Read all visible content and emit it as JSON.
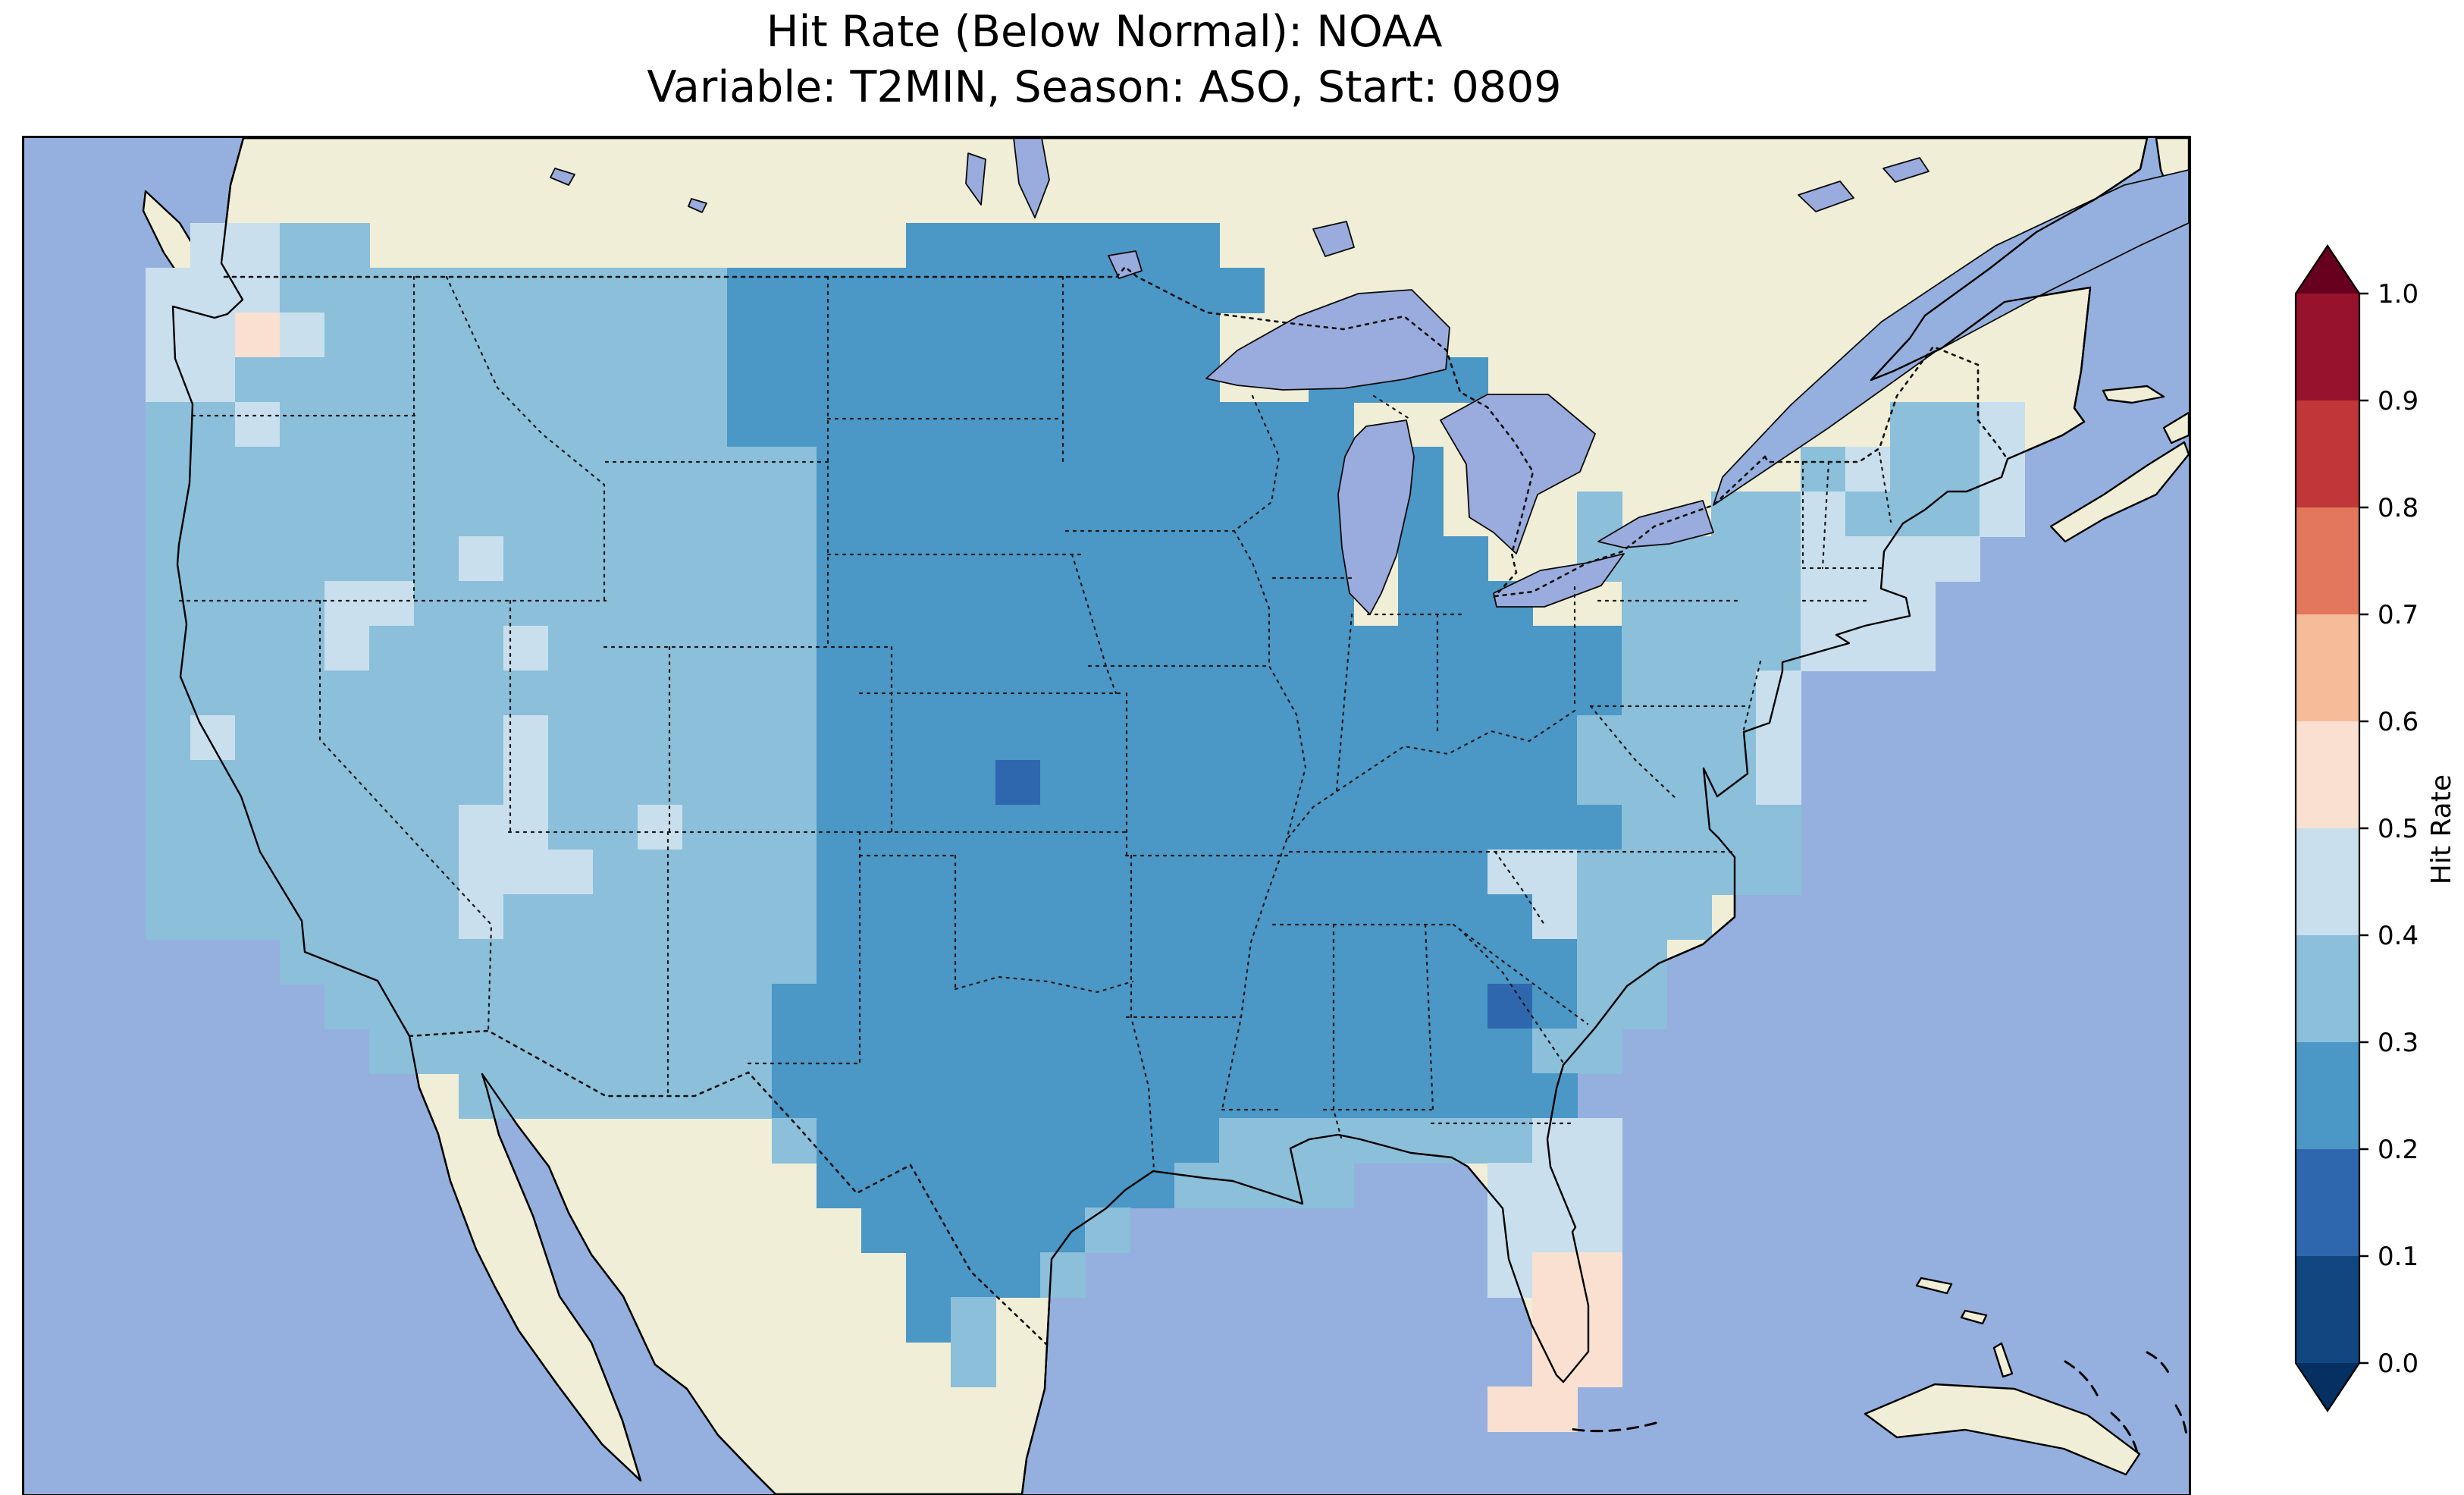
{
  "figure": {
    "title_line1": "Hit Rate (Below Normal): NOAA",
    "title_line2": "Variable: T2MIN, Season: ASO, Start: 0809"
  },
  "map": {
    "ocean_color": "#95b0de",
    "land_color": "#f0eed6",
    "lake_color": "#9aabdd",
    "region": "Contiguous United States with surrounding Canada, Mexico, Gulf of Mexico and Atlantic"
  },
  "colorbar": {
    "label": "Hit Rate",
    "ticks": [
      "1.0",
      "0.9",
      "0.8",
      "0.7",
      "0.6",
      "0.5",
      "0.4",
      "0.3",
      "0.2",
      "0.1",
      "0.0"
    ],
    "bin_colors": [
      "#114781",
      "#2e67ae",
      "#4b97c6",
      "#8bbfda",
      "#c9dfed",
      "#f9e0d0",
      "#f6bc99",
      "#e2775c",
      "#c13639",
      "#97122c"
    ],
    "under_color": "#053061",
    "over_color": "#67001f"
  },
  "chart_data": {
    "type": "heatmap",
    "title": "Hit Rate (Below Normal): NOAA",
    "subtitle": "Variable: T2MIN, Season: ASO, Start: 0809",
    "metric": "Hit Rate (Below Normal)",
    "source": "NOAA",
    "variable": "T2MIN",
    "season": "ASO",
    "start": "0809",
    "value_range": [
      0.0,
      1.0
    ],
    "colormap": {
      "name": "RdBu_r, 10 discrete bins, extend both",
      "bin_edges": [
        0.0,
        0.1,
        0.2,
        0.3,
        0.4,
        0.5,
        0.6,
        0.7,
        0.8,
        0.9,
        1.0
      ]
    },
    "legend_bin_ranges": [
      "0.0-0.1",
      "0.1-0.2",
      "0.2-0.3",
      "0.3-0.4",
      "0.4-0.5",
      "0.5-0.6",
      "0.6-0.7",
      "0.7-0.8",
      "0.8-0.9",
      "0.9-1.0"
    ],
    "summary": "Hit rates over most of the central and eastern CONUS are 0.2-0.3 (medium blue); the interior West and coasts are 0.3-0.5 (lighter blues); isolated 0.1-0.2 cells appear in central Kansas and central Georgia; South Florida and the Keys reach 0.5-0.6 (pale pink).",
    "grid": {
      "note": "Character-coded hit-rate bins on an approximate CONUS grid, '.'=no data (masked/non-US). Values estimated from the pixels.",
      "cell_bins": {
        "a": 0,
        "b": 1,
        "c": 2,
        "d": 3,
        "e": 4,
        "f": 5,
        "g": 6
      },
      "n_cols": 42,
      "n_rows": 27,
      "approx_bounds_note": "estimated extent of gridded data",
      "approx_lon_bounds": [
        -125.5,
        -66.7
      ],
      "approx_lat_bounds": [
        24.0,
        50.2
      ],
      "rows": [
        ".eedd............ccccccc..................",
        "eeeddddddddddcccccccccccc.................",
        "eefedddddddddccccccccccc..................",
        "eedddddddddddccccccccccc..cccc............",
        "ddeddddddddddcccccccccccccc............dde",
        "dddddddddddddddcccccccccccc.c........dedde",
        "dddddddddddddddcccccccccccc.c...d..ddeddde",
        "dddddddedddddddcccccccccccc.cc..dddddeeee.",
        "ddddeedddddddddcccccccccccc.ccc..ddddeee..",
        "ddddedddeddddddccccccccccccccccccddddeee..",
        "dddddddddddddddccccccccccccccccccddde.....",
        "deddddddeddddddcccccccccccccccccdddde.....",
        "ddddddddeddddddccccbccccccccccccdddde.....",
        "dddddddeeddedddccccccccccccccccccdddd.....",
        "dddddddeeedddddccccccccccccccceeddddd.....",
        "dddddddedddddddccccccccccccccccedddе......",
        "...ddddddddddddcccccccccccccccccdd........",
        "....ddddddddddccccccccccccccccbcdd........",
        ".....dddddddddcccccccccccccccccdd.........",
        ".......dddddddcccccccccccccccccc..........",
        "..............dcccccccccdddddddee.........",
        "...............ccccccccdddd...eee.........",
        "................cccccd........eee.........",
        ".................cccd.........eff.........",
        ".................cd............ff.........",
        "..................d............ff.........",
        "..............................ff.........."
      ]
    }
  }
}
